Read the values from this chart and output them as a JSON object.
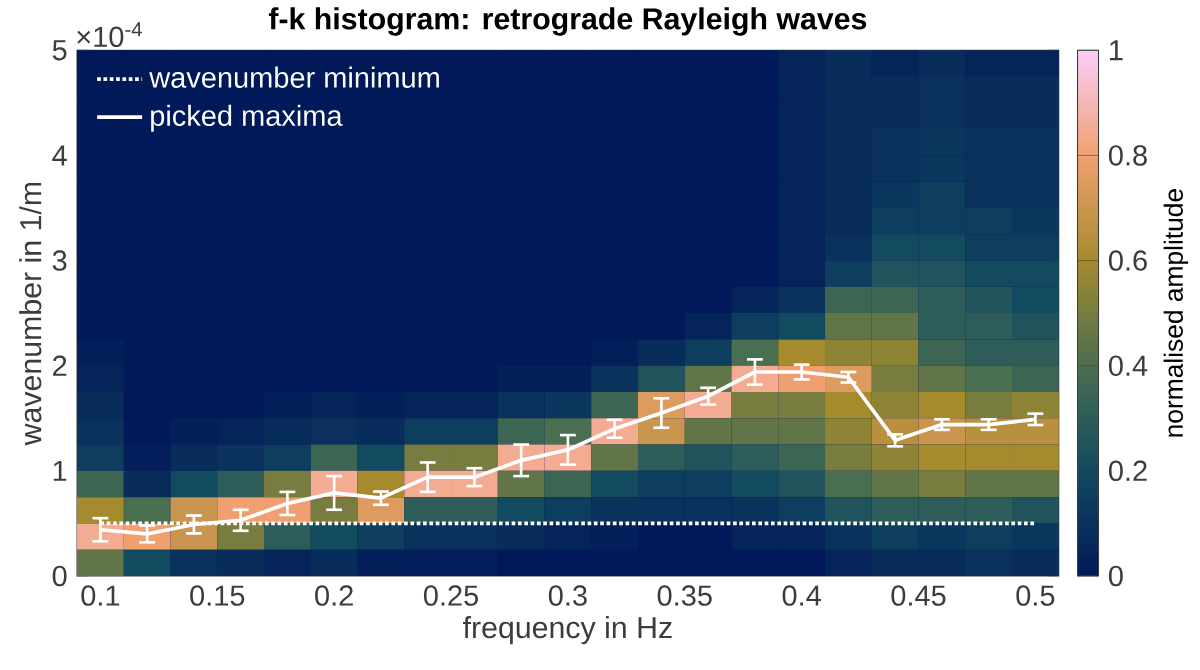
{
  "chart_data": {
    "type": "heatmap",
    "title": "f-k histogram: retrograde Rayleigh waves",
    "xlabel": "frequency in Hz",
    "ylabel": "wavenumber in 1/m",
    "clabel": "normalised amplitude",
    "annotations": [
      "×10$^{-4}$"
    ],
    "x": [
      0.1,
      0.12,
      0.14,
      0.16,
      0.18,
      0.2,
      0.22,
      0.24,
      0.26,
      0.28,
      0.3,
      0.32,
      0.34,
      0.36,
      0.38,
      0.4,
      0.42,
      0.44,
      0.46,
      0.48,
      0.5
    ],
    "y": [
      4.875,
      4.625,
      4.375,
      4.125,
      3.875,
      3.625,
      3.375,
      3.125,
      2.875,
      2.625,
      2.375,
      2.125,
      1.875,
      1.625,
      1.375,
      1.125,
      0.875,
      0.625,
      0.375,
      0.125
    ],
    "cells": [
      [
        0,
        0,
        0,
        0,
        0,
        0,
        0,
        0,
        0,
        0,
        0,
        0,
        0,
        0,
        0,
        0.05,
        0.08,
        0.05,
        0.08,
        0.05,
        0.05
      ],
      [
        0,
        0,
        0,
        0,
        0,
        0,
        0,
        0,
        0,
        0,
        0,
        0,
        0,
        0,
        0,
        0.05,
        0.08,
        0.08,
        0.1,
        0.08,
        0.08
      ],
      [
        0,
        0,
        0,
        0,
        0,
        0,
        0,
        0,
        0,
        0,
        0,
        0,
        0,
        0,
        0,
        0.05,
        0.08,
        0.08,
        0.1,
        0.08,
        0.08
      ],
      [
        0,
        0,
        0,
        0,
        0,
        0,
        0,
        0,
        0,
        0,
        0,
        0,
        0,
        0,
        0,
        0.05,
        0.08,
        0.1,
        0.12,
        0.1,
        0.1
      ],
      [
        0,
        0,
        0,
        0,
        0,
        0,
        0,
        0,
        0,
        0,
        0,
        0,
        0,
        0,
        0,
        0.05,
        0.08,
        0.1,
        0.12,
        0.1,
        0.1
      ],
      [
        0,
        0,
        0,
        0,
        0,
        0,
        0,
        0,
        0,
        0,
        0,
        0,
        0,
        0,
        0,
        0.05,
        0.08,
        0.12,
        0.15,
        0.1,
        0.1
      ],
      [
        0,
        0,
        0,
        0,
        0,
        0,
        0,
        0,
        0,
        0,
        0,
        0,
        0,
        0,
        0,
        0.05,
        0.08,
        0.15,
        0.15,
        0.15,
        0.12
      ],
      [
        0,
        0,
        0,
        0,
        0,
        0,
        0,
        0,
        0,
        0,
        0,
        0,
        0,
        0,
        0,
        0.05,
        0.1,
        0.2,
        0.2,
        0.15,
        0.15
      ],
      [
        0,
        0,
        0,
        0,
        0,
        0,
        0,
        0,
        0,
        0,
        0,
        0,
        0,
        0,
        0,
        0.05,
        0.15,
        0.25,
        0.25,
        0.2,
        0.2
      ],
      [
        0,
        0,
        0,
        0,
        0,
        0,
        0,
        0,
        0,
        0,
        0,
        0,
        0,
        0,
        0.05,
        0.1,
        0.35,
        0.35,
        0.3,
        0.25,
        0.2
      ],
      [
        0,
        0,
        0,
        0,
        0,
        0,
        0,
        0,
        0,
        0,
        0,
        0,
        0,
        0.05,
        0.15,
        0.2,
        0.45,
        0.45,
        0.3,
        0.3,
        0.25
      ],
      [
        0.03,
        0,
        0,
        0,
        0,
        0,
        0,
        0,
        0,
        0,
        0,
        0.03,
        0.08,
        0.15,
        0.4,
        0.6,
        0.55,
        0.55,
        0.35,
        0.3,
        0.3
      ],
      [
        0.05,
        0,
        0,
        0,
        0,
        0,
        0,
        0,
        0,
        0.03,
        0.03,
        0.1,
        0.25,
        0.45,
        0.85,
        0.8,
        0.75,
        0.5,
        0.45,
        0.4,
        0.35
      ],
      [
        0.08,
        0,
        0,
        0,
        0.03,
        0.05,
        0.03,
        0.05,
        0.05,
        0.1,
        0.12,
        0.35,
        0.75,
        0.85,
        0.5,
        0.5,
        0.6,
        0.55,
        0.6,
        0.5,
        0.55
      ],
      [
        0.1,
        0,
        0.03,
        0.05,
        0.08,
        0.1,
        0.08,
        0.15,
        0.15,
        0.35,
        0.4,
        0.85,
        0.7,
        0.45,
        0.45,
        0.45,
        0.55,
        0.65,
        0.7,
        0.65,
        0.65
      ],
      [
        0.15,
        0.02,
        0.08,
        0.1,
        0.15,
        0.35,
        0.2,
        0.5,
        0.5,
        0.85,
        0.85,
        0.45,
        0.3,
        0.25,
        0.3,
        0.35,
        0.5,
        0.55,
        0.6,
        0.6,
        0.6
      ],
      [
        0.35,
        0.08,
        0.2,
        0.3,
        0.5,
        0.85,
        0.6,
        0.85,
        0.85,
        0.45,
        0.35,
        0.2,
        0.15,
        0.15,
        0.2,
        0.25,
        0.4,
        0.45,
        0.5,
        0.45,
        0.45
      ],
      [
        0.6,
        0.4,
        0.7,
        0.8,
        0.8,
        0.5,
        0.75,
        0.3,
        0.3,
        0.2,
        0.15,
        0.1,
        0.1,
        0.1,
        0.1,
        0.15,
        0.25,
        0.3,
        0.3,
        0.3,
        0.25
      ],
      [
        0.85,
        0.8,
        0.7,
        0.5,
        0.3,
        0.2,
        0.15,
        0.1,
        0.1,
        0.08,
        0.05,
        0.03,
        0,
        0,
        0.05,
        0.05,
        0.1,
        0.15,
        0.12,
        0.15,
        0.12
      ],
      [
        0.45,
        0.2,
        0.1,
        0.08,
        0.05,
        0.08,
        0.03,
        0.02,
        0.02,
        0,
        0,
        0,
        0,
        0,
        0,
        0,
        0.05,
        0.08,
        0.08,
        0.1,
        0.08
      ]
    ],
    "clim": [
      0,
      1
    ],
    "cticks": [
      0,
      0.2,
      0.4,
      0.6,
      0.8,
      1
    ],
    "xlim": [
      0.09,
      0.51
    ],
    "ylim": [
      0,
      5
    ],
    "xticks": [
      0.1,
      0.15,
      0.2,
      0.25,
      0.3,
      0.35,
      0.4,
      0.45,
      0.5
    ],
    "yticks": [
      0,
      1,
      2,
      3,
      4,
      5
    ],
    "legend": "top left",
    "marker": "none",
    "series": [
      {
        "type": "line",
        "name": "wavenumber minimum",
        "color": "#ffffff",
        "line_style": "dotted",
        "x": [
          0.1,
          0.5
        ],
        "values": [
          0.5,
          0.5
        ]
      },
      {
        "type": "line",
        "name": "picked maxima",
        "color": "#ffffff",
        "line_style": "solid",
        "x": [
          0.1,
          0.12,
          0.14,
          0.16,
          0.18,
          0.2,
          0.22,
          0.24,
          0.26,
          0.28,
          0.3,
          0.32,
          0.34,
          0.36,
          0.38,
          0.4,
          0.42,
          0.44,
          0.46,
          0.48,
          0.5
        ],
        "values": [
          0.44,
          0.4,
          0.49,
          0.53,
          0.69,
          0.79,
          0.74,
          0.94,
          0.94,
          1.1,
          1.2,
          1.4,
          1.55,
          1.71,
          1.94,
          1.94,
          1.89,
          1.29,
          1.44,
          1.44,
          1.49
        ],
        "errors": [
          0.11,
          0.08,
          0.085,
          0.1,
          0.11,
          0.16,
          0.063,
          0.14,
          0.085,
          0.15,
          0.14,
          0.085,
          0.14,
          0.08,
          0.12,
          0.07,
          0.05,
          0.057,
          0.05,
          0.05,
          0.054
        ]
      }
    ]
  }
}
